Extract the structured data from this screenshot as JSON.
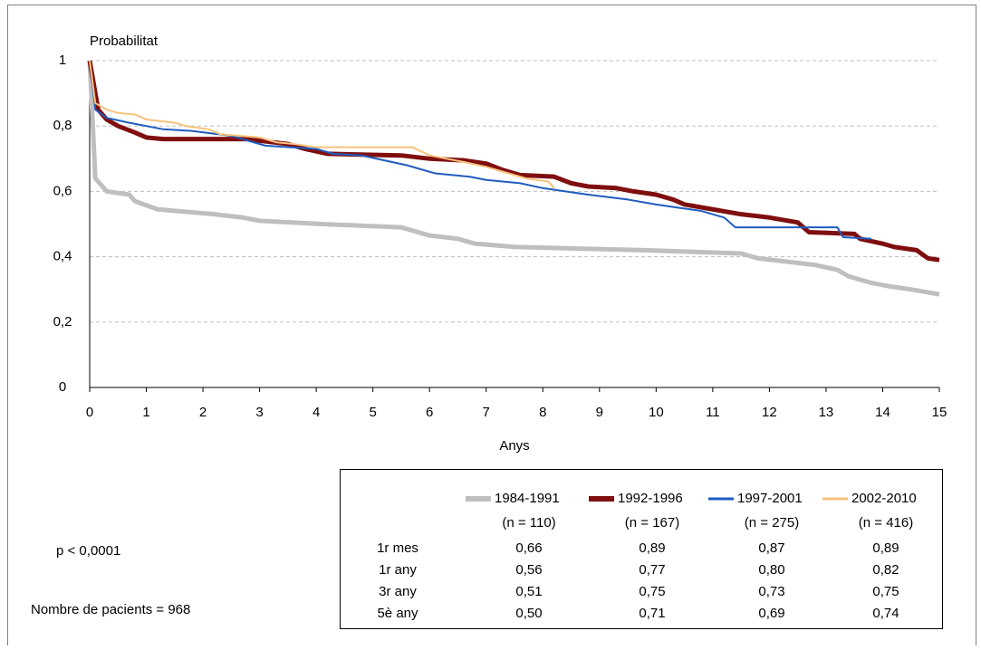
{
  "chart_data": {
    "type": "line",
    "y_label": "Probabilitat",
    "x_label": "Anys",
    "xlim": [
      0,
      15
    ],
    "xticks": [
      0,
      1,
      2,
      3,
      4,
      5,
      6,
      7,
      8,
      9,
      10,
      11,
      12,
      13,
      14,
      15
    ],
    "ylim": [
      0,
      1
    ],
    "yticks": [
      0,
      {
        "value": 0.2,
        "label": "0,2"
      },
      {
        "value": 0.4,
        "label": "0,4"
      },
      {
        "value": 0.6,
        "label": "0,6"
      },
      {
        "value": 0.8,
        "label": "0,8"
      },
      1
    ],
    "grid": true,
    "series": [
      {
        "name": "1984-1991",
        "color": "#bfbfbf",
        "width": 5,
        "x": [
          0,
          0.1,
          0.3,
          0.7,
          0.8,
          1.2,
          2.2,
          2.7,
          3,
          4.1,
          5.5,
          6,
          6.5,
          6.8,
          7.5,
          9.8,
          11.5,
          11.8,
          12.8,
          13.2,
          13.4,
          13.8,
          14.1,
          14.5,
          15
        ],
        "values": [
          1,
          0.64,
          0.6,
          0.59,
          0.57,
          0.545,
          0.53,
          0.52,
          0.51,
          0.5,
          0.49,
          0.465,
          0.455,
          0.44,
          0.43,
          0.42,
          0.41,
          0.395,
          0.375,
          0.36,
          0.34,
          0.32,
          0.31,
          0.3,
          0.285
        ]
      },
      {
        "name": "1992-1996",
        "color": "#7f0f0f",
        "width": 5,
        "x": [
          0,
          0.15,
          0.3,
          0.5,
          0.8,
          1,
          1.3,
          2.8,
          3,
          3.5,
          3.8,
          4.2,
          5.5,
          6,
          6.6,
          7,
          7.3,
          7.6,
          8.2,
          8.5,
          8.8,
          9.3,
          9.6,
          10,
          10.3,
          10.5,
          11,
          11.5,
          12,
          12.5,
          12.7,
          13.5,
          13.6,
          14,
          14.2,
          14.6,
          14.8,
          15
        ],
        "values": [
          1,
          0.85,
          0.82,
          0.8,
          0.78,
          0.765,
          0.76,
          0.76,
          0.755,
          0.745,
          0.73,
          0.715,
          0.71,
          0.7,
          0.695,
          0.685,
          0.665,
          0.65,
          0.645,
          0.625,
          0.615,
          0.61,
          0.6,
          0.59,
          0.575,
          0.56,
          0.545,
          0.53,
          0.52,
          0.505,
          0.475,
          0.47,
          0.455,
          0.44,
          0.43,
          0.42,
          0.395,
          0.39
        ]
      },
      {
        "name": "1997-2001",
        "color": "#1f5cbf",
        "width": 2,
        "x": [
          0,
          0.1,
          0.3,
          0.7,
          1,
          1.3,
          1.8,
          2.5,
          2.9,
          3.1,
          4,
          4.3,
          4.8,
          5.2,
          5.6,
          5.8,
          6.1,
          6.7,
          7,
          7.6,
          8,
          8.8,
          9.5,
          10,
          10.4,
          10.8,
          11.2,
          11.4,
          12.5,
          13.2,
          13.3,
          13.8
        ],
        "values": [
          1,
          0.85,
          0.825,
          0.81,
          0.8,
          0.79,
          0.785,
          0.77,
          0.75,
          0.74,
          0.73,
          0.715,
          0.71,
          0.695,
          0.68,
          0.67,
          0.655,
          0.645,
          0.635,
          0.625,
          0.61,
          0.59,
          0.575,
          0.56,
          0.55,
          0.54,
          0.52,
          0.49,
          0.49,
          0.49,
          0.46,
          0.455
        ]
      },
      {
        "name": "2002-2010",
        "color": "#f8c27c",
        "width": 2,
        "x": [
          0,
          0.1,
          0.3,
          0.5,
          0.8,
          1,
          1.5,
          1.7,
          2.1,
          2.3,
          3,
          3.3,
          3.6,
          4,
          5.7,
          6,
          6.6,
          7,
          7.3,
          7.7,
          8.1,
          8.2
        ],
        "values": [
          1,
          0.87,
          0.85,
          0.84,
          0.835,
          0.82,
          0.81,
          0.8,
          0.79,
          0.775,
          0.765,
          0.75,
          0.745,
          0.735,
          0.735,
          0.71,
          0.69,
          0.675,
          0.66,
          0.64,
          0.63,
          0.61
        ]
      }
    ]
  },
  "notes": {
    "p_value": "p < 0,0001",
    "patients": "Nombre de pacients = 968"
  },
  "table": {
    "n_labels": [
      "(n = 110)",
      "(n = 167)",
      "(n = 275)",
      "(n = 416)"
    ],
    "rows": [
      {
        "label": "1r mes",
        "cells": [
          "0,66",
          "0,89",
          "0,87",
          "0,89"
        ]
      },
      {
        "label": "1r any",
        "cells": [
          "0,56",
          "0,77",
          "0,80",
          "0,82"
        ]
      },
      {
        "label": "3r any",
        "cells": [
          "0,51",
          "0,75",
          "0,73",
          "0,75"
        ]
      },
      {
        "label": "5è any",
        "cells": [
          "0,50",
          "0,71",
          "0,69",
          "0,74"
        ]
      }
    ]
  }
}
